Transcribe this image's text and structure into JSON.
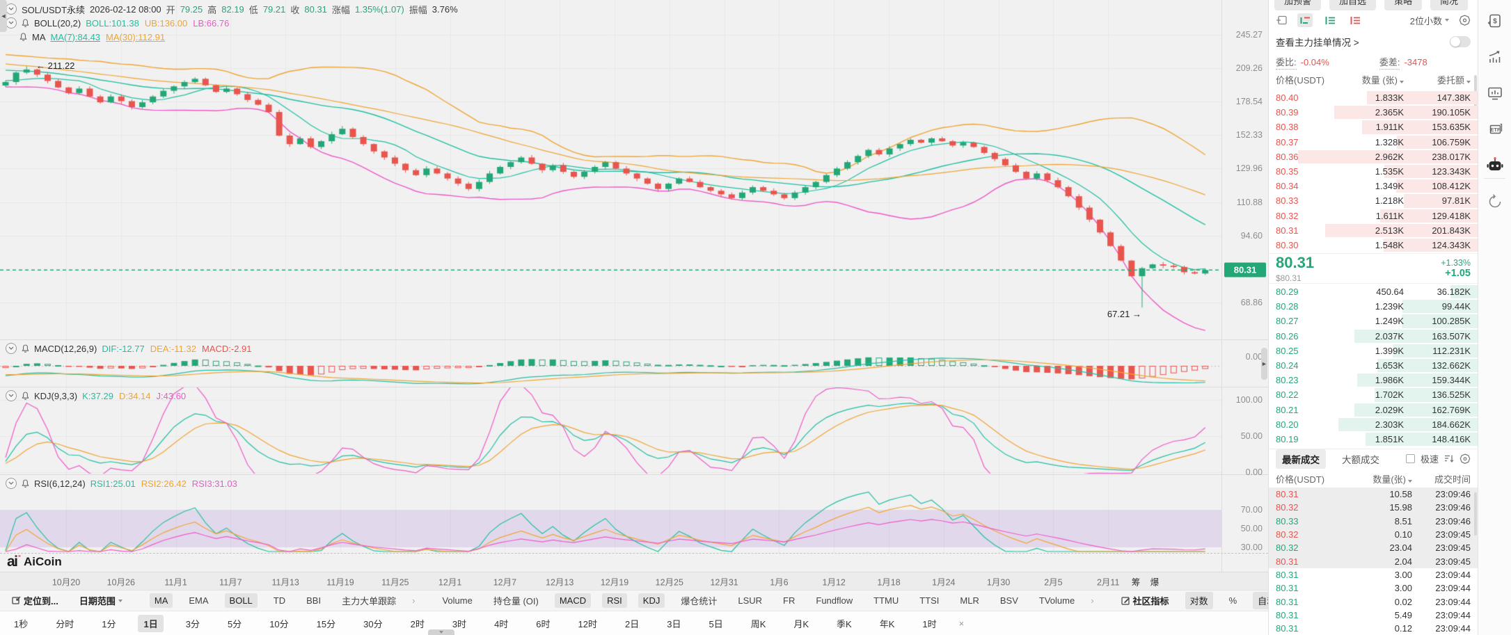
{
  "colors": {
    "up": "#23a777",
    "down": "#e8544e",
    "teal": "#1fbfa2",
    "orange": "#f0a431",
    "magenta": "#ee58c9",
    "band": "rgba(168,120,220,0.20)",
    "ask_depth": "#fbe7e6",
    "bid_depth": "#e2f4ed",
    "grid": "#e7e7e7"
  },
  "legend1": {
    "symbol": "SOL/USDT永续",
    "datetime": "2026-02-12 08:00",
    "open_label": "开",
    "open": "79.25",
    "high_label": "高",
    "high": "82.19",
    "low_label": "低",
    "low": "79.21",
    "close_label": "收",
    "close": "80.31",
    "change_label": "涨幅",
    "change": "1.35%(1.07)",
    "amp_label": "振幅",
    "amp": "3.76%"
  },
  "legend_boll": {
    "name": "BOLL(20,2)",
    "items": [
      {
        "t": "BOLL:101.38",
        "c": "teal"
      },
      {
        "t": "UB:136.00",
        "c": "orange"
      },
      {
        "t": "LB:66.76",
        "c": "magenta"
      }
    ]
  },
  "legend_ma": {
    "name": "MA",
    "items": [
      {
        "t": "MA(7):84.43",
        "c": "teal",
        "u": true
      },
      {
        "t": "MA(30):112.91",
        "c": "orange",
        "u": true
      }
    ]
  },
  "legend_macd": {
    "name": "MACD(12,26,9)",
    "items": [
      {
        "t": "DIF:-12.77",
        "c": "teal"
      },
      {
        "t": "DEA:-11.32",
        "c": "orange"
      },
      {
        "t": "MACD:-2.91",
        "c": "down"
      }
    ]
  },
  "legend_kdj": {
    "name": "KDJ(9,3,3)",
    "items": [
      {
        "t": "K:37.29",
        "c": "teal"
      },
      {
        "t": "D:34.14",
        "c": "orange"
      },
      {
        "t": "J:43.60",
        "c": "magenta"
      }
    ]
  },
  "legend_rsi": {
    "name": "RSI(6,12,24)",
    "items": [
      {
        "t": "RSI1:25.01",
        "c": "teal"
      },
      {
        "t": "RSI2:26.42",
        "c": "orange"
      },
      {
        "t": "RSI3:31.03",
        "c": "magenta"
      }
    ]
  },
  "axis": {
    "price_ticks": [
      "245.27",
      "209.26",
      "178.54",
      "152.33",
      "129.96",
      "110.88",
      "94.60",
      "68.86"
    ],
    "current": "80.31",
    "macd": [
      "0.00"
    ],
    "kdj": [
      "100.00",
      "50.00",
      "0.00"
    ],
    "rsi": [
      "70.00",
      "50.00",
      "30.00"
    ]
  },
  "chart_data": {
    "type": "candlestick+indicators",
    "symbol": "SOL/USDT永续",
    "interval": "1日",
    "scale": "log",
    "x_labels": [
      "10月20",
      "10月26",
      "11月1",
      "11月7",
      "11月13",
      "11月19",
      "11月25",
      "12月1",
      "12月7",
      "12月13",
      "12月19",
      "12月25",
      "12月31",
      "1月6",
      "1月12",
      "1月18",
      "1月24",
      "1月30",
      "2月5",
      "2月11"
    ],
    "x_extra": [
      "筹",
      "爆"
    ],
    "price_ticks": [
      245.27,
      209.26,
      178.54,
      152.33,
      129.96,
      110.88,
      94.6,
      68.86
    ],
    "current_price": 80.31,
    "current_ohlc": {
      "open": 79.25,
      "high": 82.19,
      "low": 79.21,
      "close": 80.31
    },
    "high_annotation": {
      "text": "← 211.22",
      "index": 2,
      "value": 211.22
    },
    "low_annotation": {
      "text": "67.21 →",
      "index": 108,
      "value": 67.21
    },
    "closes": [
      196,
      205,
      208,
      203,
      197,
      191,
      186,
      190,
      183,
      178,
      183,
      179,
      174,
      178,
      183,
      188,
      192,
      196,
      199,
      193,
      187,
      190,
      185,
      180,
      176,
      170,
      152,
      146,
      150,
      144,
      148,
      153,
      157,
      151,
      146,
      141,
      137,
      133,
      129,
      126,
      130,
      127,
      124,
      121,
      118,
      122,
      127,
      131,
      134,
      137,
      133,
      129,
      132,
      128,
      125,
      128,
      131,
      134,
      130,
      127,
      124,
      121,
      118,
      121,
      124,
      122,
      119,
      117,
      115,
      113,
      116,
      119,
      117,
      115,
      113,
      116,
      119,
      122,
      126,
      130,
      134,
      138,
      142,
      139,
      143,
      146,
      149,
      147,
      150,
      148,
      145,
      147,
      144,
      140,
      136,
      132,
      128,
      124,
      127,
      123,
      119,
      114,
      108,
      102,
      96,
      90,
      84,
      78,
      81,
      82.5,
      82,
      81.5,
      79.5,
      79,
      80.31
    ],
    "indicators": {
      "boll": "BOLL(20,2)",
      "ma": [
        "MA(7)",
        "MA(30)"
      ],
      "macd": "MACD(12,26,9)",
      "kdj": "KDJ(9,3,3)",
      "rsi": "RSI(6,12,24)"
    }
  },
  "toolbar": {
    "items": [
      {
        "label": "定位到...",
        "icon": "locate",
        "bold": true
      },
      {
        "label": "日期范围",
        "caret": true,
        "bold": true
      },
      {
        "divider": true
      },
      {
        "label": "MA",
        "active": true
      },
      {
        "label": "EMA"
      },
      {
        "label": "BOLL",
        "active": true
      },
      {
        "label": "TD"
      },
      {
        "label": "BBI"
      },
      {
        "label": "主力大单跟踪"
      },
      {
        "label": "›",
        "muted": true
      },
      {
        "divider": true
      },
      {
        "label": "Volume"
      },
      {
        "label": "持仓量 (OI)"
      },
      {
        "label": "MACD",
        "active": true
      },
      {
        "label": "RSI",
        "active": true
      },
      {
        "label": "KDJ",
        "active": true
      },
      {
        "label": "爆仓统计"
      },
      {
        "label": "LSUR"
      },
      {
        "label": "FR"
      },
      {
        "label": "Fundflow"
      },
      {
        "label": "TTMU"
      },
      {
        "label": "TTSI"
      },
      {
        "label": "MLR"
      },
      {
        "label": "BSV"
      },
      {
        "label": "TVolume"
      },
      {
        "label": "›",
        "muted": true
      },
      {
        "divider": true
      },
      {
        "label": "社区指标",
        "icon": "edit",
        "bold": true
      },
      {
        "label": "对数",
        "active": true
      },
      {
        "label": "%"
      },
      {
        "label": "自动",
        "active": true
      }
    ]
  },
  "timeframes": {
    "items": [
      "1秒",
      "分时",
      "1分",
      "1日",
      "3分",
      "5分",
      "10分",
      "15分",
      "30分",
      "2时",
      "3时",
      "4时",
      "6时",
      "12时",
      "2日",
      "3日",
      "5日",
      "周K",
      "月K",
      "季K",
      "年K",
      "1时",
      "×"
    ],
    "active": "1日",
    "muted": "×"
  },
  "panel": {
    "top_buttons": [
      "加预警",
      "加自选",
      "策略",
      "简况"
    ],
    "decimals": "2位小数",
    "main_orders_link": "查看主力挂单情况 >",
    "ratio_label": "委比:",
    "ratio_value": "-0.04%",
    "diff_label": "委差:",
    "diff_value": "-3478",
    "book_headers": [
      "价格(USDT)",
      "数量 (张)",
      "委托额"
    ],
    "asks": [
      {
        "p": "80.40",
        "q": "1.833K",
        "a": "147.38K",
        "qk": 1.833
      },
      {
        "p": "80.39",
        "q": "2.365K",
        "a": "190.105K",
        "qk": 2.365
      },
      {
        "p": "80.38",
        "q": "1.911K",
        "a": "153.635K",
        "qk": 1.911
      },
      {
        "p": "80.37",
        "q": "1.328K",
        "a": "106.759K",
        "qk": 1.328
      },
      {
        "p": "80.36",
        "q": "2.962K",
        "a": "238.017K",
        "qk": 2.962
      },
      {
        "p": "80.35",
        "q": "1.535K",
        "a": "123.343K",
        "qk": 1.535
      },
      {
        "p": "80.34",
        "q": "1.349K",
        "a": "108.412K",
        "qk": 1.349
      },
      {
        "p": "80.33",
        "q": "1.218K",
        "a": "97.81K",
        "qk": 1.218
      },
      {
        "p": "80.32",
        "q": "1.611K",
        "a": "129.418K",
        "qk": 1.611
      },
      {
        "p": "80.31",
        "q": "2.513K",
        "a": "201.843K",
        "qk": 2.513
      },
      {
        "p": "80.30",
        "q": "1.548K",
        "a": "124.343K",
        "qk": 1.548
      }
    ],
    "last": {
      "price": "80.31",
      "usd": "$80.31",
      "pct": "+1.33%",
      "chg": "+1.05"
    },
    "bids": [
      {
        "p": "80.29",
        "q": "450.64",
        "a": "36.182K",
        "qk": 0.45
      },
      {
        "p": "80.28",
        "q": "1.239K",
        "a": "99.44K",
        "qk": 1.239
      },
      {
        "p": "80.27",
        "q": "1.249K",
        "a": "100.285K",
        "qk": 1.249
      },
      {
        "p": "80.26",
        "q": "2.037K",
        "a": "163.507K",
        "qk": 2.037
      },
      {
        "p": "80.25",
        "q": "1.399K",
        "a": "112.231K",
        "qk": 1.399
      },
      {
        "p": "80.24",
        "q": "1.653K",
        "a": "132.662K",
        "qk": 1.653
      },
      {
        "p": "80.23",
        "q": "1.986K",
        "a": "159.344K",
        "qk": 1.986
      },
      {
        "p": "80.22",
        "q": "1.702K",
        "a": "136.525K",
        "qk": 1.702
      },
      {
        "p": "80.21",
        "q": "2.029K",
        "a": "162.769K",
        "qk": 2.029
      },
      {
        "p": "80.20",
        "q": "2.303K",
        "a": "184.662K",
        "qk": 2.303
      },
      {
        "p": "80.19",
        "q": "1.851K",
        "a": "148.416K",
        "qk": 1.851
      }
    ],
    "trade_tabs": [
      "最新成交",
      "大额成交"
    ],
    "fast_label": "极速",
    "trade_headers": [
      "价格(USDT)",
      "数量(张)",
      "成交时间"
    ],
    "trades": [
      {
        "p": "80.31",
        "q": "10.58",
        "t": "23:09:46",
        "d": "down",
        "hl": true
      },
      {
        "p": "80.32",
        "q": "15.98",
        "t": "23:09:46",
        "d": "down",
        "hl": true
      },
      {
        "p": "80.33",
        "q": "8.51",
        "t": "23:09:46",
        "d": "up",
        "hl": true
      },
      {
        "p": "80.32",
        "q": "0.10",
        "t": "23:09:45",
        "d": "down",
        "hl": true
      },
      {
        "p": "80.32",
        "q": "23.04",
        "t": "23:09:45",
        "d": "up",
        "hl": true
      },
      {
        "p": "80.31",
        "q": "2.04",
        "t": "23:09:45",
        "d": "down",
        "hl": true
      },
      {
        "p": "80.31",
        "q": "3.00",
        "t": "23:09:44",
        "d": "up",
        "hl": false
      },
      {
        "p": "80.31",
        "q": "3.00",
        "t": "23:09:44",
        "d": "up",
        "hl": false
      },
      {
        "p": "80.31",
        "q": "0.02",
        "t": "23:09:44",
        "d": "up",
        "hl": false
      },
      {
        "p": "80.31",
        "q": "5.49",
        "t": "23:09:44",
        "d": "up",
        "hl": false
      },
      {
        "p": "80.31",
        "q": "0.12",
        "t": "23:09:44",
        "d": "up",
        "hl": false
      }
    ]
  },
  "branding": {
    "logo_mark": "ai",
    "logo_text": "AiCoin"
  },
  "sidebar_icons": [
    "order-dollar-icon",
    "trend-icon",
    "monitor-chart-icon",
    "etf-icon",
    "robot-icon",
    "refresh-icon"
  ]
}
